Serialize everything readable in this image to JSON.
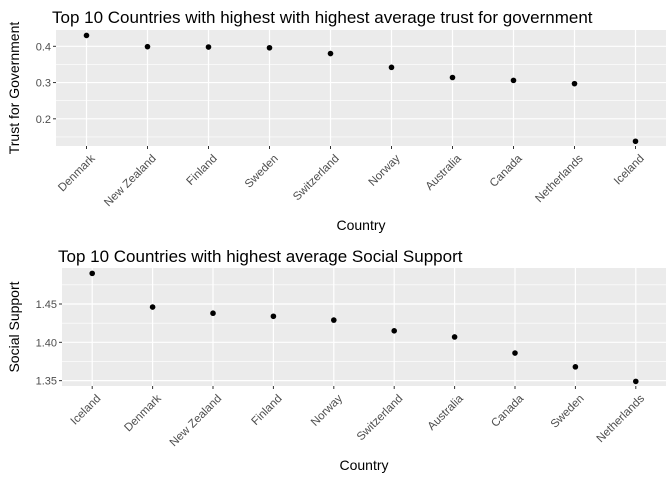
{
  "colors": {
    "panel_bg": "#ebebeb",
    "grid": "#ffffff",
    "point": "#000000",
    "tick_text": "#4d4d4d"
  },
  "chart_data": [
    {
      "type": "scatter",
      "title": "Top 10 Countries with highest with highest average trust for government",
      "xlabel": "Country",
      "ylabel": "Trust for Government",
      "categories": [
        "Denmark",
        "New Zealand",
        "Finland",
        "Sweden",
        "Switzerland",
        "Norway",
        "Australia",
        "Canada",
        "Netherlands",
        "Iceland"
      ],
      "values": [
        0.43,
        0.399,
        0.398,
        0.396,
        0.38,
        0.342,
        0.314,
        0.306,
        0.297,
        0.138
      ],
      "y_ticks": [
        0.2,
        0.3,
        0.4
      ],
      "ylim": [
        0.125,
        0.445
      ],
      "grid": true,
      "legend": "none"
    },
    {
      "type": "scatter",
      "title": "Top 10 Countries with highest average Social Support",
      "xlabel": "Country",
      "ylabel": "Social Support",
      "categories": [
        "Iceland",
        "Denmark",
        "New Zealand",
        "Finland",
        "Norway",
        "Switzerland",
        "Australia",
        "Canada",
        "Sweden",
        "Netherlands"
      ],
      "values": [
        1.49,
        1.446,
        1.438,
        1.434,
        1.429,
        1.415,
        1.407,
        1.386,
        1.368,
        1.349
      ],
      "y_ticks": [
        1.35,
        1.4,
        1.45
      ],
      "ylim": [
        1.343,
        1.497
      ],
      "y_tick_format": 2,
      "grid": true,
      "legend": "none"
    }
  ]
}
